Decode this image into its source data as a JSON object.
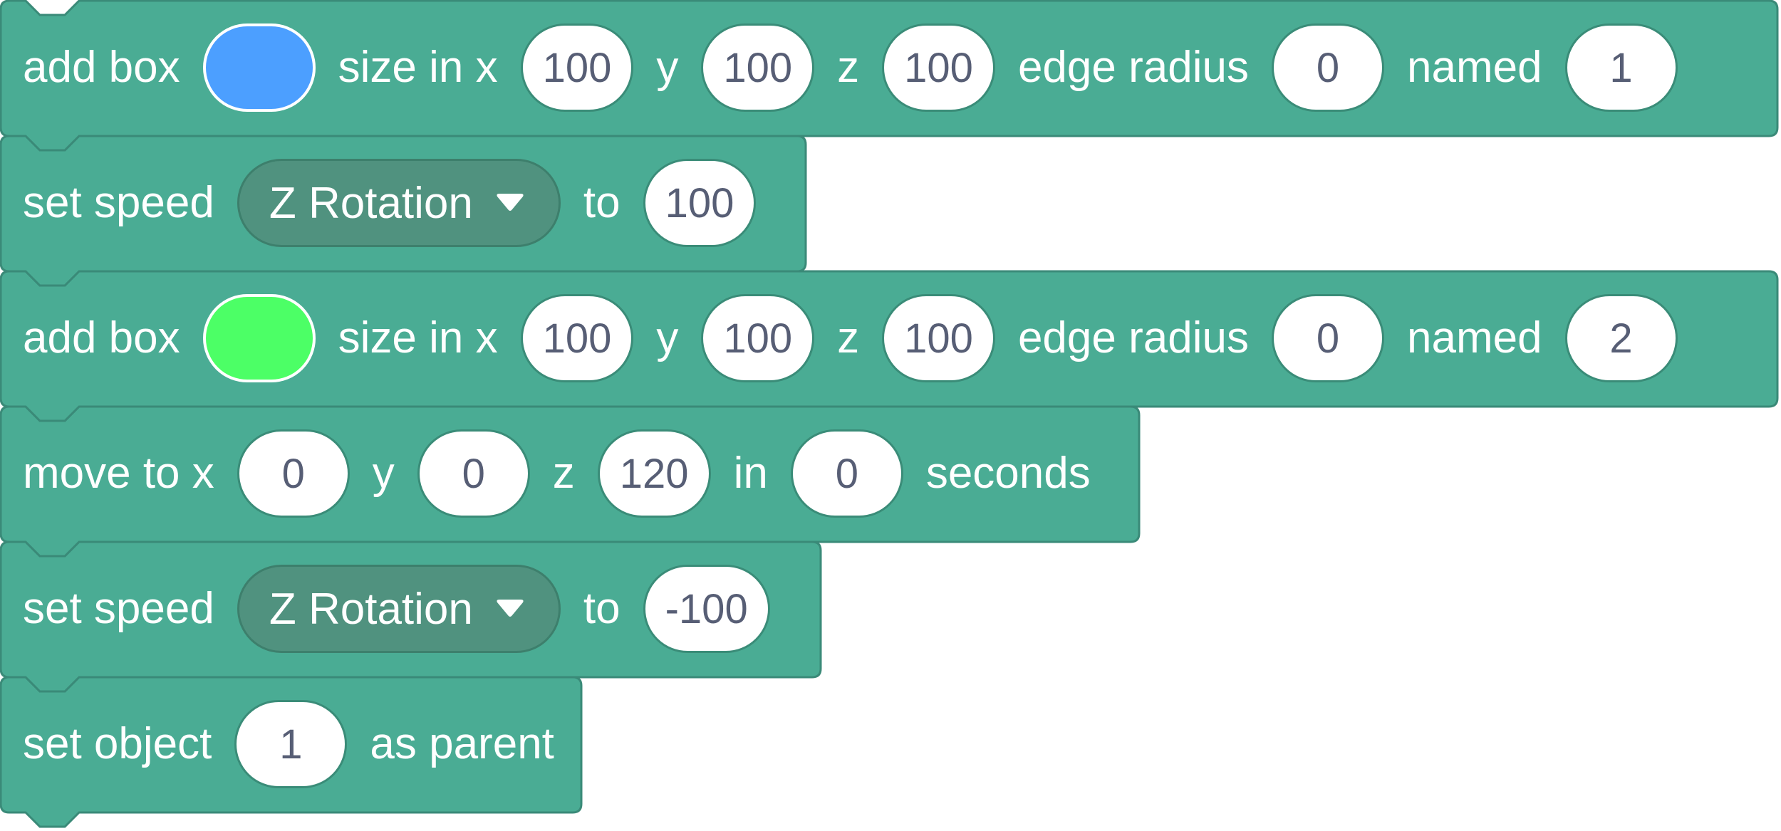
{
  "colors": {
    "block_fill": "#4aac94",
    "block_border": "#3a8a78",
    "dropdown_fill": "#50927f",
    "field_text": "#575e75"
  },
  "blocks": [
    {
      "type": "add-box",
      "width": 2496,
      "parts": [
        {
          "k": "label",
          "text": "add box"
        },
        {
          "k": "color",
          "value": "#4c9fff"
        },
        {
          "k": "label",
          "text": "size in x"
        },
        {
          "k": "field",
          "value": "100"
        },
        {
          "k": "label",
          "text": "y"
        },
        {
          "k": "field",
          "value": "100"
        },
        {
          "k": "label",
          "text": "z"
        },
        {
          "k": "field",
          "value": "100"
        },
        {
          "k": "label",
          "text": "edge radius"
        },
        {
          "k": "field",
          "value": "0"
        },
        {
          "k": "label",
          "text": "named"
        },
        {
          "k": "field",
          "value": "1"
        }
      ]
    },
    {
      "type": "set-speed",
      "width": 1132,
      "parts": [
        {
          "k": "label",
          "text": "set speed"
        },
        {
          "k": "dropdown",
          "value": "Z Rotation"
        },
        {
          "k": "label",
          "text": "to"
        },
        {
          "k": "field",
          "value": "100"
        }
      ]
    },
    {
      "type": "add-box",
      "width": 2496,
      "parts": [
        {
          "k": "label",
          "text": "add box"
        },
        {
          "k": "color",
          "value": "#4cff66"
        },
        {
          "k": "label",
          "text": "size in x"
        },
        {
          "k": "field",
          "value": "100"
        },
        {
          "k": "label",
          "text": "y"
        },
        {
          "k": "field",
          "value": "100"
        },
        {
          "k": "label",
          "text": "z"
        },
        {
          "k": "field",
          "value": "100"
        },
        {
          "k": "label",
          "text": "edge radius"
        },
        {
          "k": "field",
          "value": "0"
        },
        {
          "k": "label",
          "text": "named"
        },
        {
          "k": "field",
          "value": "2"
        }
      ]
    },
    {
      "type": "move-to",
      "width": 1600,
      "parts": [
        {
          "k": "label",
          "text": "move to x"
        },
        {
          "k": "field",
          "value": "0"
        },
        {
          "k": "label",
          "text": "y"
        },
        {
          "k": "field",
          "value": "0"
        },
        {
          "k": "label",
          "text": "z"
        },
        {
          "k": "field",
          "value": "120"
        },
        {
          "k": "label",
          "text": "in"
        },
        {
          "k": "field",
          "value": "0"
        },
        {
          "k": "label",
          "text": "seconds"
        }
      ]
    },
    {
      "type": "set-speed",
      "width": 1153,
      "parts": [
        {
          "k": "label",
          "text": "set speed"
        },
        {
          "k": "dropdown",
          "value": "Z Rotation"
        },
        {
          "k": "label",
          "text": "to"
        },
        {
          "k": "field",
          "value": "-100"
        }
      ]
    },
    {
      "type": "set-parent",
      "width": 817,
      "parts": [
        {
          "k": "label",
          "text": "set object"
        },
        {
          "k": "field",
          "value": "1"
        },
        {
          "k": "label",
          "text": "as parent"
        }
      ]
    }
  ]
}
